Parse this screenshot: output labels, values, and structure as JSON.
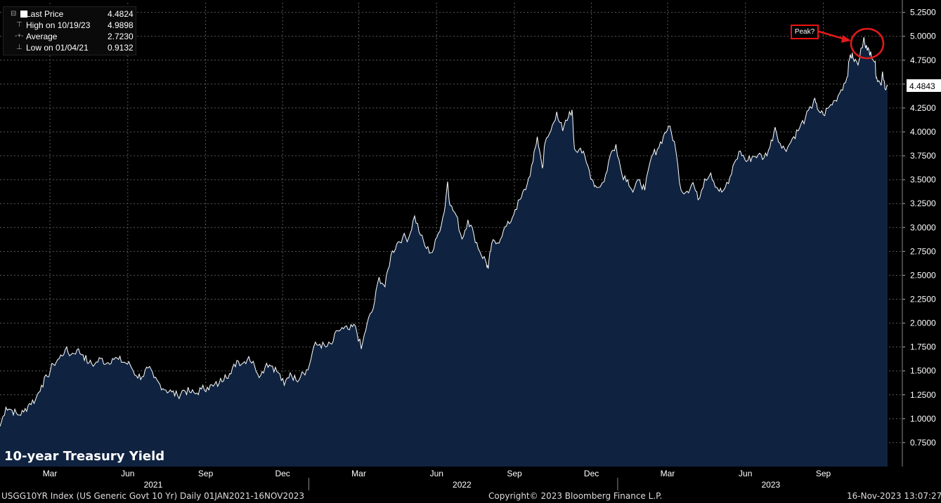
{
  "legend": {
    "last_price_label": "Last Price",
    "last_price_value": "4.4824",
    "high_label": "High on 10/19/23",
    "high_value": "4.9898",
    "average_label": "Average",
    "average_value": "2.7230",
    "low_label": "Low on 01/04/21",
    "low_value": "0.9132"
  },
  "title": "10-year Treasury Yield",
  "annotation": "Peak?",
  "last_value_tag": "4.4843",
  "footer": {
    "left": "USGG10YR Index (US Generic Govt 10 Yr)  Daily 01JAN2021-16NOV2023",
    "center": "Copyright© 2023 Bloomberg Finance L.P.",
    "right": "16-Nov-2023 13:07:27"
  },
  "colors": {
    "fill": "#0f2340",
    "line": "#ffffff",
    "accent": "#e11a1a",
    "grid": "#5a5a5a"
  },
  "chart_data": {
    "type": "area",
    "ylim": [
      0.5,
      5.35
    ],
    "yticks": [
      "0.7500",
      "1.0000",
      "1.2500",
      "1.5000",
      "1.7500",
      "2.0000",
      "2.2500",
      "2.5000",
      "2.7500",
      "3.0000",
      "3.2500",
      "3.5000",
      "3.7500",
      "4.0000",
      "4.2500",
      "4.5000",
      "4.7500",
      "5.0000",
      "5.2500"
    ],
    "month_labels": [
      {
        "label": "Mar",
        "date": "2021-03-01"
      },
      {
        "label": "Jun",
        "date": "2021-06-01"
      },
      {
        "label": "Sep",
        "date": "2021-09-01"
      },
      {
        "label": "Dec",
        "date": "2021-12-01"
      },
      {
        "label": "Mar",
        "date": "2022-03-01"
      },
      {
        "label": "Jun",
        "date": "2022-06-01"
      },
      {
        "label": "Sep",
        "date": "2022-09-01"
      },
      {
        "label": "Dec",
        "date": "2022-12-01"
      },
      {
        "label": "Mar",
        "date": "2023-03-01"
      },
      {
        "label": "Jun",
        "date": "2023-06-01"
      },
      {
        "label": "Sep",
        "date": "2023-09-01"
      }
    ],
    "year_labels": [
      {
        "label": "2021",
        "date": "2021-07-01"
      },
      {
        "label": "2022",
        "date": "2022-07-01"
      },
      {
        "label": "2023",
        "date": "2023-07-01"
      }
    ],
    "year_dividers": [
      "2022-01-01",
      "2023-01-01"
    ],
    "series": [
      {
        "points": [
          [
            "2021-01-01",
            0.92
          ],
          [
            "2021-01-08",
            1.12
          ],
          [
            "2021-01-15",
            1.09
          ],
          [
            "2021-01-22",
            1.04
          ],
          [
            "2021-01-29",
            1.07
          ],
          [
            "2021-02-05",
            1.16
          ],
          [
            "2021-02-12",
            1.2
          ],
          [
            "2021-02-19",
            1.35
          ],
          [
            "2021-02-26",
            1.44
          ],
          [
            "2021-03-05",
            1.57
          ],
          [
            "2021-03-12",
            1.63
          ],
          [
            "2021-03-19",
            1.72
          ],
          [
            "2021-03-26",
            1.67
          ],
          [
            "2021-04-02",
            1.72
          ],
          [
            "2021-04-09",
            1.67
          ],
          [
            "2021-04-16",
            1.58
          ],
          [
            "2021-04-23",
            1.57
          ],
          [
            "2021-04-30",
            1.63
          ],
          [
            "2021-05-07",
            1.58
          ],
          [
            "2021-05-14",
            1.63
          ],
          [
            "2021-05-21",
            1.62
          ],
          [
            "2021-05-28",
            1.59
          ],
          [
            "2021-06-04",
            1.56
          ],
          [
            "2021-06-11",
            1.45
          ],
          [
            "2021-06-18",
            1.44
          ],
          [
            "2021-06-25",
            1.53
          ],
          [
            "2021-07-02",
            1.43
          ],
          [
            "2021-07-09",
            1.36
          ],
          [
            "2021-07-16",
            1.3
          ],
          [
            "2021-07-23",
            1.28
          ],
          [
            "2021-07-30",
            1.24
          ],
          [
            "2021-08-06",
            1.3
          ],
          [
            "2021-08-13",
            1.28
          ],
          [
            "2021-08-20",
            1.26
          ],
          [
            "2021-08-27",
            1.31
          ],
          [
            "2021-09-03",
            1.33
          ],
          [
            "2021-09-10",
            1.34
          ],
          [
            "2021-09-17",
            1.37
          ],
          [
            "2021-09-24",
            1.46
          ],
          [
            "2021-10-01",
            1.47
          ],
          [
            "2021-10-08",
            1.61
          ],
          [
            "2021-10-15",
            1.58
          ],
          [
            "2021-10-22",
            1.65
          ],
          [
            "2021-10-29",
            1.55
          ],
          [
            "2021-11-05",
            1.45
          ],
          [
            "2021-11-12",
            1.58
          ],
          [
            "2021-11-19",
            1.55
          ],
          [
            "2021-11-26",
            1.48
          ],
          [
            "2021-12-03",
            1.35
          ],
          [
            "2021-12-10",
            1.48
          ],
          [
            "2021-12-17",
            1.4
          ],
          [
            "2021-12-24",
            1.49
          ],
          [
            "2021-12-31",
            1.51
          ],
          [
            "2022-01-07",
            1.76
          ],
          [
            "2022-01-14",
            1.78
          ],
          [
            "2022-01-21",
            1.75
          ],
          [
            "2022-01-28",
            1.78
          ],
          [
            "2022-02-04",
            1.92
          ],
          [
            "2022-02-11",
            1.94
          ],
          [
            "2022-02-18",
            1.93
          ],
          [
            "2022-02-25",
            1.97
          ],
          [
            "2022-03-04",
            1.73
          ],
          [
            "2022-03-11",
            2.0
          ],
          [
            "2022-03-18",
            2.15
          ],
          [
            "2022-03-25",
            2.48
          ],
          [
            "2022-04-01",
            2.38
          ],
          [
            "2022-04-08",
            2.71
          ],
          [
            "2022-04-15",
            2.83
          ],
          [
            "2022-04-22",
            2.9
          ],
          [
            "2022-04-29",
            2.89
          ],
          [
            "2022-05-06",
            3.12
          ],
          [
            "2022-05-13",
            2.92
          ],
          [
            "2022-05-20",
            2.78
          ],
          [
            "2022-05-27",
            2.74
          ],
          [
            "2022-06-03",
            2.94
          ],
          [
            "2022-06-10",
            3.16
          ],
          [
            "2022-06-14",
            3.48
          ],
          [
            "2022-06-17",
            3.23
          ],
          [
            "2022-06-24",
            3.13
          ],
          [
            "2022-07-01",
            2.88
          ],
          [
            "2022-07-08",
            3.08
          ],
          [
            "2022-07-15",
            2.93
          ],
          [
            "2022-07-22",
            2.75
          ],
          [
            "2022-07-29",
            2.65
          ],
          [
            "2022-08-01",
            2.57
          ],
          [
            "2022-08-05",
            2.83
          ],
          [
            "2022-08-12",
            2.84
          ],
          [
            "2022-08-19",
            2.97
          ],
          [
            "2022-08-26",
            3.04
          ],
          [
            "2022-09-02",
            3.19
          ],
          [
            "2022-09-09",
            3.31
          ],
          [
            "2022-09-16",
            3.45
          ],
          [
            "2022-09-23",
            3.69
          ],
          [
            "2022-09-28",
            3.95
          ],
          [
            "2022-10-04",
            3.62
          ],
          [
            "2022-10-07",
            3.88
          ],
          [
            "2022-10-14",
            4.01
          ],
          [
            "2022-10-21",
            4.21
          ],
          [
            "2022-10-28",
            4.01
          ],
          [
            "2022-11-04",
            4.16
          ],
          [
            "2022-11-08",
            4.23
          ],
          [
            "2022-11-11",
            3.82
          ],
          [
            "2022-11-18",
            3.83
          ],
          [
            "2022-11-25",
            3.68
          ],
          [
            "2022-12-02",
            3.5
          ],
          [
            "2022-12-07",
            3.42
          ],
          [
            "2022-12-16",
            3.48
          ],
          [
            "2022-12-23",
            3.75
          ],
          [
            "2022-12-30",
            3.87
          ],
          [
            "2023-01-06",
            3.56
          ],
          [
            "2023-01-13",
            3.5
          ],
          [
            "2023-01-19",
            3.37
          ],
          [
            "2023-01-27",
            3.5
          ],
          [
            "2023-02-02",
            3.39
          ],
          [
            "2023-02-10",
            3.74
          ],
          [
            "2023-02-17",
            3.82
          ],
          [
            "2023-02-24",
            3.95
          ],
          [
            "2023-03-02",
            4.06
          ],
          [
            "2023-03-09",
            3.9
          ],
          [
            "2023-03-17",
            3.39
          ],
          [
            "2023-03-24",
            3.38
          ],
          [
            "2023-03-31",
            3.47
          ],
          [
            "2023-04-06",
            3.29
          ],
          [
            "2023-04-14",
            3.51
          ],
          [
            "2023-04-21",
            3.57
          ],
          [
            "2023-04-28",
            3.42
          ],
          [
            "2023-05-04",
            3.37
          ],
          [
            "2023-05-12",
            3.46
          ],
          [
            "2023-05-19",
            3.68
          ],
          [
            "2023-05-26",
            3.8
          ],
          [
            "2023-06-02",
            3.69
          ],
          [
            "2023-06-09",
            3.74
          ],
          [
            "2023-06-16",
            3.76
          ],
          [
            "2023-06-23",
            3.73
          ],
          [
            "2023-06-30",
            3.84
          ],
          [
            "2023-07-06",
            4.05
          ],
          [
            "2023-07-14",
            3.83
          ],
          [
            "2023-07-21",
            3.84
          ],
          [
            "2023-07-28",
            3.95
          ],
          [
            "2023-08-04",
            4.04
          ],
          [
            "2023-08-11",
            4.15
          ],
          [
            "2023-08-18",
            4.25
          ],
          [
            "2023-08-21",
            4.34
          ],
          [
            "2023-08-25",
            4.24
          ],
          [
            "2023-09-01",
            4.18
          ],
          [
            "2023-09-08",
            4.26
          ],
          [
            "2023-09-15",
            4.33
          ],
          [
            "2023-09-22",
            4.44
          ],
          [
            "2023-09-29",
            4.57
          ],
          [
            "2023-10-03",
            4.81
          ],
          [
            "2023-10-06",
            4.78
          ],
          [
            "2023-10-12",
            4.7
          ],
          [
            "2023-10-19",
            4.99
          ],
          [
            "2023-10-23",
            4.85
          ],
          [
            "2023-10-27",
            4.84
          ],
          [
            "2023-11-01",
            4.73
          ],
          [
            "2023-11-03",
            4.57
          ],
          [
            "2023-11-08",
            4.49
          ],
          [
            "2023-11-10",
            4.63
          ],
          [
            "2023-11-14",
            4.44
          ],
          [
            "2023-11-16",
            4.48
          ]
        ]
      }
    ]
  }
}
